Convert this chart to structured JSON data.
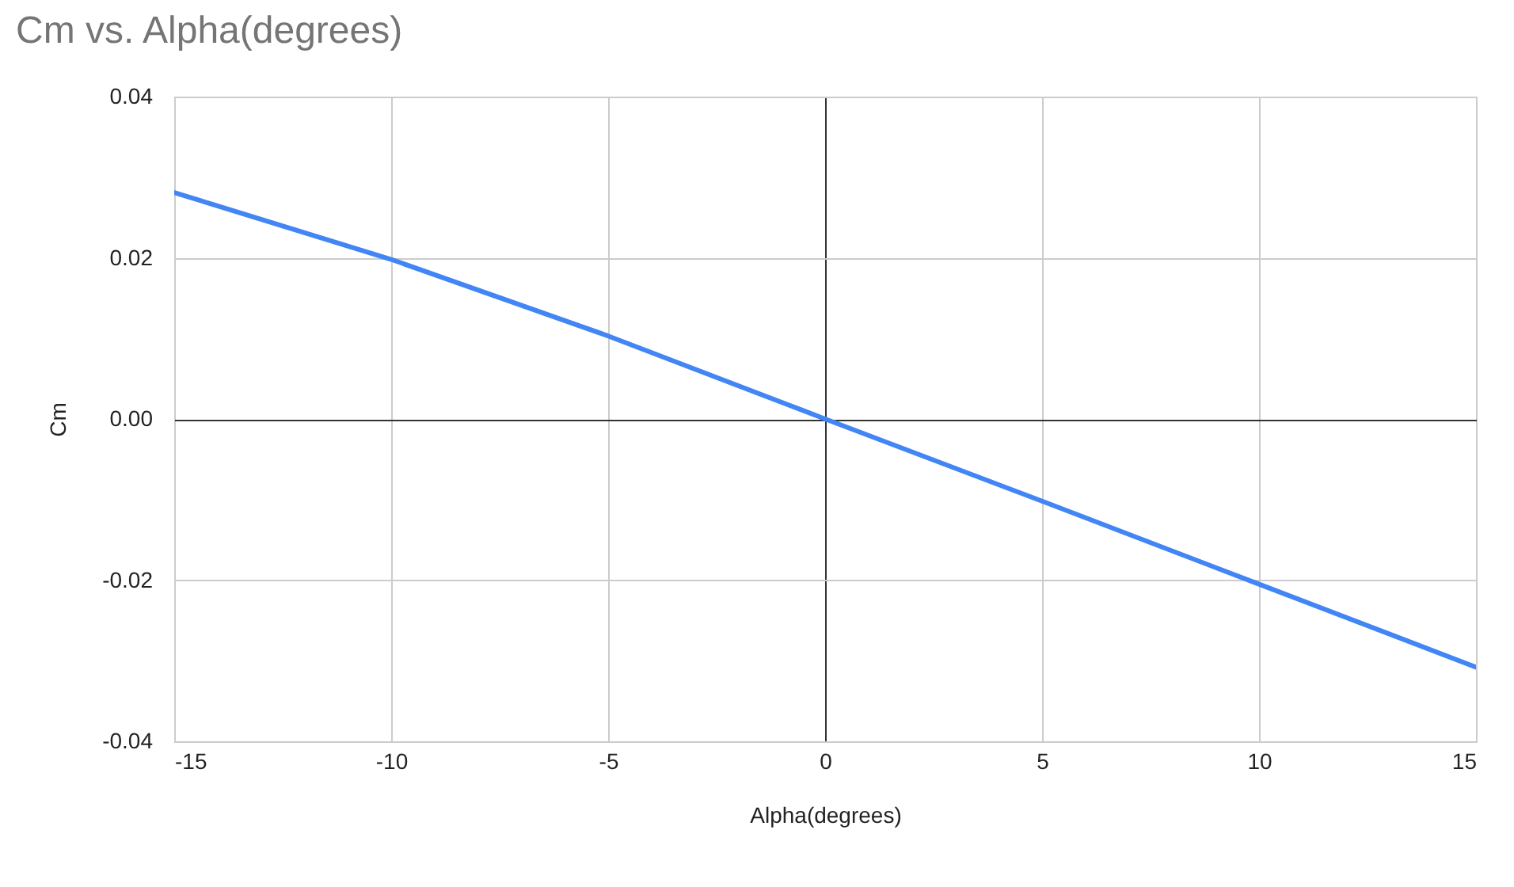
{
  "chart_data": {
    "type": "line",
    "title": "Cm vs. Alpha(degrees)",
    "xlabel": "Alpha(degrees)",
    "ylabel": "Cm",
    "x": [
      -15,
      -10,
      -5,
      0,
      5,
      10,
      15
    ],
    "series": [
      {
        "color": "#4285f4",
        "values": [
          0.0281,
          0.0198,
          0.0103,
          0.0,
          -0.0102,
          -0.0205,
          -0.0308
        ]
      }
    ],
    "xlim": [
      -15,
      15
    ],
    "xticks": [
      -15,
      -10,
      -5,
      0,
      5,
      10,
      15
    ],
    "ylim": [
      -0.04,
      0.04
    ],
    "yticks": [
      {
        "value": -0.04,
        "label": "-0.04"
      },
      {
        "value": -0.02,
        "label": "-0.02"
      },
      {
        "value": 0,
        "label": "0.00"
      },
      {
        "value": 0.02,
        "label": "0.02"
      },
      {
        "value": 0.04,
        "label": "0.04"
      }
    ],
    "grid": true,
    "legend": false,
    "marker": "none",
    "line_style": "solid"
  }
}
